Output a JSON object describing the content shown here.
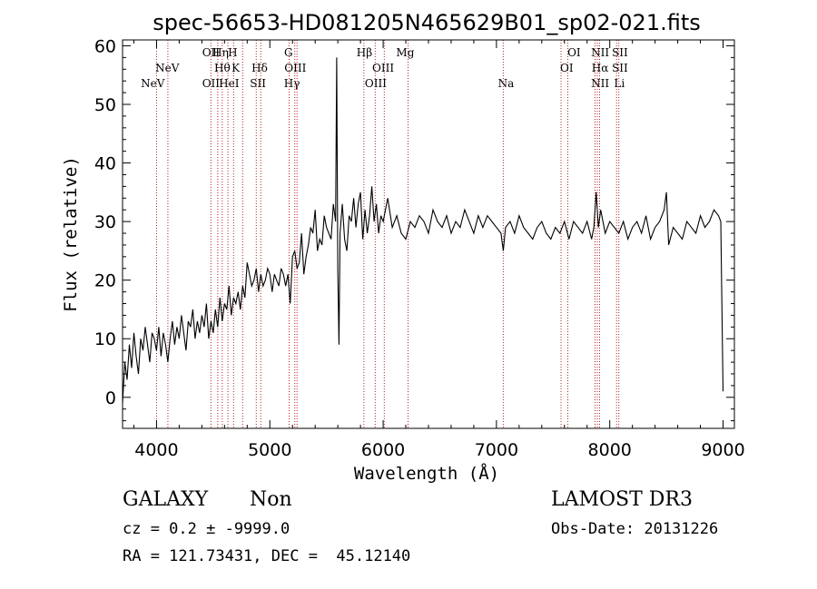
{
  "chart_data": {
    "type": "line",
    "title": "spec-56653-HD081205N465629B01_sp02-021.fits",
    "xlabel": "Wavelength (Å)",
    "ylabel": "Flux (relative)",
    "xlim": [
      3700,
      9100
    ],
    "ylim": [
      -5.3,
      61
    ],
    "x_ticks": [
      4000,
      5000,
      6000,
      7000,
      8000,
      9000
    ],
    "y_ticks": [
      0,
      10,
      20,
      30,
      40,
      50,
      60
    ],
    "series": [
      {
        "name": "spectrum",
        "color": "#000000",
        "x": [
          3700,
          3720,
          3740,
          3760,
          3780,
          3800,
          3820,
          3840,
          3860,
          3880,
          3900,
          3920,
          3940,
          3960,
          3980,
          4000,
          4020,
          4040,
          4060,
          4080,
          4100,
          4120,
          4140,
          4160,
          4180,
          4200,
          4220,
          4240,
          4260,
          4280,
          4300,
          4320,
          4340,
          4360,
          4380,
          4400,
          4420,
          4440,
          4460,
          4480,
          4500,
          4520,
          4540,
          4560,
          4580,
          4600,
          4620,
          4640,
          4660,
          4680,
          4700,
          4720,
          4740,
          4760,
          4780,
          4800,
          4820,
          4840,
          4860,
          4880,
          4900,
          4920,
          4940,
          4960,
          4980,
          5000,
          5020,
          5040,
          5060,
          5080,
          5100,
          5120,
          5140,
          5160,
          5180,
          5200,
          5220,
          5240,
          5260,
          5280,
          5300,
          5320,
          5340,
          5360,
          5380,
          5400,
          5420,
          5440,
          5460,
          5480,
          5500,
          5520,
          5540,
          5560,
          5580,
          5590,
          5600,
          5610,
          5620,
          5640,
          5660,
          5680,
          5700,
          5720,
          5740,
          5760,
          5780,
          5800,
          5820,
          5840,
          5860,
          5880,
          5900,
          5920,
          5940,
          5960,
          5980,
          6000,
          6040,
          6080,
          6120,
          6160,
          6200,
          6240,
          6280,
          6320,
          6360,
          6400,
          6440,
          6480,
          6520,
          6560,
          6600,
          6640,
          6680,
          6720,
          6760,
          6800,
          6840,
          6880,
          6920,
          6960,
          7000,
          7040,
          7060,
          7080,
          7120,
          7160,
          7200,
          7240,
          7280,
          7320,
          7360,
          7400,
          7440,
          7480,
          7520,
          7560,
          7600,
          7640,
          7680,
          7720,
          7760,
          7800,
          7840,
          7860,
          7880,
          7900,
          7920,
          7960,
          8000,
          8040,
          8080,
          8120,
          8160,
          8200,
          8240,
          8280,
          8320,
          8360,
          8400,
          8440,
          8480,
          8500,
          8520,
          8560,
          8600,
          8640,
          8680,
          8720,
          8760,
          8800,
          8840,
          8880,
          8920,
          8960,
          8980,
          9000
        ],
        "y": [
          -1,
          6,
          3,
          9,
          5,
          11,
          7,
          4,
          10,
          8,
          12,
          9,
          6,
          11,
          10,
          8,
          12,
          7,
          11,
          9,
          6,
          10,
          13,
          9,
          12,
          10,
          14,
          11,
          8,
          13,
          12,
          15,
          10,
          13,
          11,
          14,
          12,
          16,
          10,
          13,
          11,
          15,
          12,
          17,
          13,
          16,
          15,
          19,
          14,
          17,
          16,
          18,
          15,
          19,
          17,
          23,
          21,
          19,
          20,
          22,
          18,
          21,
          19,
          20,
          22,
          21,
          18,
          21,
          20,
          19,
          22,
          21,
          19,
          21,
          16,
          24,
          25,
          22,
          23,
          28,
          21,
          24,
          26,
          29,
          28,
          32,
          25,
          27,
          26,
          31,
          29,
          28,
          27,
          33,
          30,
          58,
          22,
          9,
          28,
          33,
          27,
          25,
          31,
          30,
          34,
          29,
          33,
          35,
          27,
          32,
          28,
          31,
          36,
          30,
          33,
          28,
          31,
          30,
          34,
          29,
          31,
          28,
          27,
          30,
          29,
          31,
          30,
          28,
          32,
          30,
          29,
          31,
          28,
          30,
          29,
          32,
          30,
          28,
          31,
          29,
          31,
          30,
          29,
          28,
          25,
          29,
          30,
          28,
          31,
          29,
          28,
          27,
          29,
          30,
          28,
          27,
          29,
          28,
          30,
          27,
          30,
          29,
          28,
          30,
          27,
          29,
          35,
          29,
          32,
          28,
          30,
          29,
          28,
          30,
          27,
          29,
          30,
          28,
          31,
          27,
          29,
          30,
          32,
          35,
          26,
          29,
          28,
          27,
          30,
          29,
          28,
          31,
          29,
          30,
          32,
          31,
          30,
          1
        ]
      }
    ],
    "line_labels": [
      {
        "label": "NeV",
        "wl": 3967,
        "row": 3
      },
      {
        "label": "NeV",
        "wl": 4095,
        "row": 2
      },
      {
        "label": "OII",
        "wl": 4480,
        "row": 1
      },
      {
        "label": "Hη",
        "wl": 4565,
        "row": 1
      },
      {
        "label": "H",
        "wl": 4672,
        "row": 1
      },
      {
        "label": "Hθ",
        "wl": 4580,
        "row": 2
      },
      {
        "label": "K",
        "wl": 4698,
        "row": 2
      },
      {
        "label": "OII",
        "wl": 4480,
        "row": 3
      },
      {
        "label": "HeI",
        "wl": 4640,
        "row": 3
      },
      {
        "label": "Hδ",
        "wl": 4910,
        "row": 2
      },
      {
        "label": "SII",
        "wl": 4895,
        "row": 3
      },
      {
        "label": "G",
        "wl": 5165,
        "row": 1
      },
      {
        "label": "OIII",
        "wl": 5225,
        "row": 2
      },
      {
        "label": "Hγ",
        "wl": 5195,
        "row": 3
      },
      {
        "label": "Hβ",
        "wl": 5835,
        "row": 1
      },
      {
        "label": "OIII",
        "wl": 6000,
        "row": 2
      },
      {
        "label": "OIII",
        "wl": 5935,
        "row": 3
      },
      {
        "label": "Mg",
        "wl": 6195,
        "row": 1
      },
      {
        "label": "Na",
        "wl": 7085,
        "row": 3
      },
      {
        "label": "OI",
        "wl": 7685,
        "row": 1
      },
      {
        "label": "OI",
        "wl": 7620,
        "row": 2
      },
      {
        "label": "NII",
        "wl": 7915,
        "row": 1
      },
      {
        "label": "Hα",
        "wl": 7915,
        "row": 2
      },
      {
        "label": "NII",
        "wl": 7915,
        "row": 3
      },
      {
        "label": "SII",
        "wl": 8090,
        "row": 1
      },
      {
        "label": "SII",
        "wl": 8090,
        "row": 2
      },
      {
        "label": "Li",
        "wl": 8085,
        "row": 3
      }
    ],
    "marker_lines": [
      4000,
      4100,
      4480,
      4540,
      4580,
      4630,
      4680,
      4760,
      4880,
      4920,
      5170,
      5220,
      5240,
      5830,
      5930,
      6010,
      6220,
      7060,
      7570,
      7630,
      7870,
      7890,
      7910,
      8060,
      8080
    ],
    "marker_color": "#b22222"
  },
  "info": {
    "object_type": "GALAXY",
    "subclass": "Non",
    "survey": "LAMOST DR3",
    "cz": "cz = 0.2 ± -9999.0",
    "obs_date": "Obs-Date: 20131226",
    "coords": "RA = 121.73431, DEC =  45.12140"
  }
}
